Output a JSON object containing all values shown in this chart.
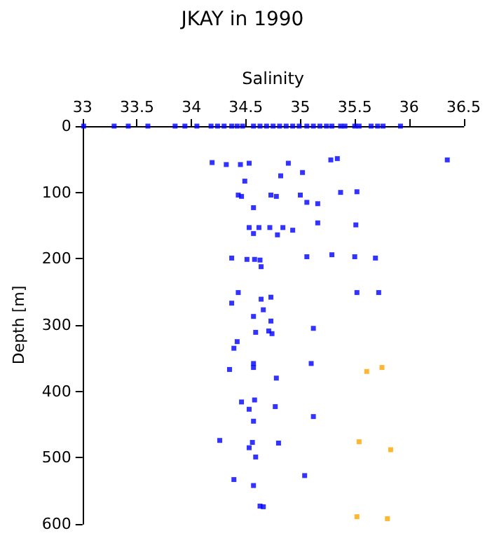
{
  "chart_data": {
    "type": "scatter",
    "title": "JKAY in 1990",
    "xlabel": "Salinity",
    "ylabel": "Depth [m]",
    "xlim": [
      33,
      36.5
    ],
    "xticks": [
      33,
      33.5,
      34,
      34.5,
      35,
      35.5,
      36,
      36.5
    ],
    "ylim": [
      600,
      0
    ],
    "yticks": [
      0,
      100,
      200,
      300,
      400,
      500,
      600
    ],
    "grid": false,
    "marker": "square",
    "series": [
      {
        "color": "#0000ff",
        "x": [
          33.01,
          33.29,
          33.42,
          33.6,
          33.85,
          33.94,
          34.05,
          34.18,
          34.24,
          34.3,
          34.37,
          34.42,
          34.47,
          34.57,
          34.63,
          34.69,
          34.75,
          34.81,
          34.87,
          34.93,
          34.99,
          35.06,
          35.12,
          35.18,
          35.24,
          35.29,
          35.37,
          35.41,
          35.5,
          35.54,
          35.65,
          35.71,
          35.76,
          35.92,
          34.19,
          34.32,
          34.45,
          34.53,
          34.89,
          35.28,
          35.34,
          36.35,
          34.82,
          35.02,
          34.49,
          34.43,
          34.46,
          34.73,
          34.78,
          35.0,
          35.06,
          35.16,
          35.37,
          35.52,
          34.57,
          34.53,
          34.62,
          34.72,
          34.84,
          34.93,
          34.57,
          34.79,
          35.16,
          35.51,
          34.37,
          34.51,
          34.58,
          34.63,
          34.64,
          35.06,
          35.29,
          35.5,
          35.69,
          34.43,
          35.52,
          35.72,
          34.37,
          34.64,
          34.73,
          34.66,
          34.57,
          34.73,
          35.12,
          34.59,
          34.71,
          34.74,
          34.42,
          34.39,
          34.35,
          34.57,
          34.57,
          34.78,
          35.1,
          34.46,
          34.58,
          34.53,
          34.77,
          35.12,
          34.57,
          34.26,
          34.56,
          34.53,
          34.8,
          34.59,
          35.04,
          34.39,
          34.57,
          34.63,
          34.66
        ],
        "values": [
          0,
          0,
          0,
          0,
          0,
          0,
          0,
          0,
          0,
          0,
          0,
          0,
          0,
          0,
          0,
          0,
          0,
          0,
          0,
          0,
          0,
          0,
          0,
          0,
          0,
          0,
          0,
          0,
          0,
          0,
          0,
          0,
          0,
          0,
          55,
          58,
          58,
          56,
          56,
          51,
          49,
          51,
          75,
          70,
          83,
          104,
          106,
          104,
          106,
          104,
          115,
          117,
          100,
          99,
          123,
          153,
          153,
          153,
          153,
          157,
          162,
          164,
          146,
          149,
          199,
          201,
          201,
          202,
          212,
          197,
          194,
          197,
          199,
          251,
          251,
          251,
          267,
          261,
          258,
          277,
          287,
          294,
          305,
          311,
          309,
          313,
          325,
          335,
          367,
          358,
          364,
          380,
          358,
          416,
          413,
          427,
          423,
          438,
          445,
          474,
          477,
          485,
          478,
          499,
          527,
          533,
          542,
          573,
          574
        ]
      },
      {
        "color": "#ffa500",
        "x": [
          35.61,
          35.75,
          35.54,
          35.83,
          35.52,
          35.8
        ],
        "values": [
          370,
          364,
          476,
          488,
          589,
          592
        ]
      }
    ]
  }
}
